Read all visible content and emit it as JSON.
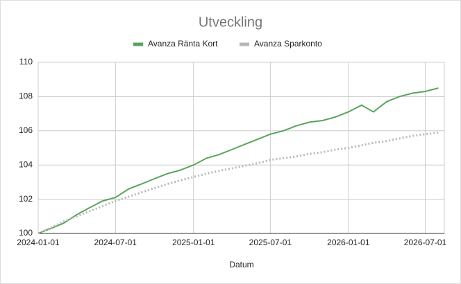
{
  "chart_data": {
    "type": "line",
    "title": "Utveckling",
    "x_label": "Datum",
    "x": [
      "2024-01-01",
      "2024-02-01",
      "2024-03-01",
      "2024-04-01",
      "2024-05-01",
      "2024-06-01",
      "2024-07-01",
      "2024-08-01",
      "2024-09-01",
      "2024-10-01",
      "2024-11-01",
      "2024-12-01",
      "2025-01-01",
      "2025-02-01",
      "2025-03-01",
      "2025-04-01",
      "2025-05-01",
      "2025-06-01",
      "2025-07-01",
      "2025-08-01",
      "2025-09-01",
      "2025-10-01",
      "2025-11-01",
      "2025-12-01",
      "2026-01-01",
      "2026-02-01",
      "2026-03-01",
      "2026-04-01",
      "2026-05-01",
      "2026-06-01",
      "2026-07-01",
      "2026-08-01"
    ],
    "series": [
      {
        "name": "Avanza Ränta Kort",
        "color": "#57a55a",
        "dashed": false,
        "values": [
          100.0,
          100.3,
          100.6,
          101.1,
          101.5,
          101.9,
          102.1,
          102.6,
          102.9,
          103.2,
          103.5,
          103.7,
          104.0,
          104.4,
          104.6,
          104.9,
          105.2,
          105.5,
          105.8,
          106.0,
          106.3,
          106.5,
          106.6,
          106.8,
          107.1,
          107.5,
          107.1,
          107.7,
          108.0,
          108.2,
          108.3,
          108.5
        ]
      },
      {
        "name": "Avanza Sparkonto",
        "color": "#b7b7b7",
        "dashed": true,
        "values": [
          100.0,
          100.35,
          100.7,
          101.0,
          101.3,
          101.6,
          101.9,
          102.15,
          102.4,
          102.65,
          102.9,
          103.1,
          103.3,
          103.5,
          103.65,
          103.8,
          103.95,
          104.1,
          104.3,
          104.4,
          104.5,
          104.65,
          104.75,
          104.9,
          105.0,
          105.15,
          105.3,
          105.4,
          105.55,
          105.7,
          105.8,
          105.9
        ]
      }
    ],
    "xlim": [
      "2024-01-01",
      "2026-08-15"
    ],
    "xticks": [
      "2024-01-01",
      "2024-07-01",
      "2025-01-01",
      "2025-07-01",
      "2026-01-01",
      "2026-07-01"
    ],
    "ylim": [
      100,
      110
    ],
    "yticks": [
      100,
      102,
      104,
      106,
      108,
      110
    ],
    "grid": true,
    "legend": "top"
  }
}
